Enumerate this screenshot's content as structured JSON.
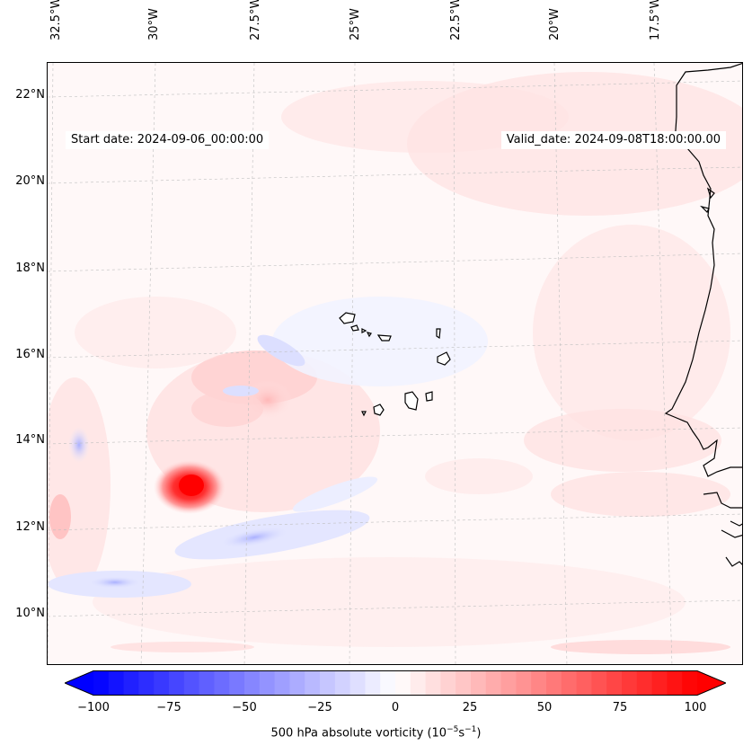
{
  "map": {
    "start_date": "Start date: 2024-09-06_00:00:00",
    "valid_date": "Valid_date: 2024-09-08T18:00:00.00",
    "lon_labels": [
      "32.5°W",
      "30°W",
      "27.5°W",
      "25°W",
      "22.5°W",
      "20°W",
      "17.5°W"
    ],
    "lat_labels": [
      "22°N",
      "20°N",
      "18°N",
      "16°N",
      "14°N",
      "12°N",
      "10°N"
    ],
    "colorbar": {
      "ticks": [
        "−100",
        "−75",
        "−50",
        "−25",
        "0",
        "25",
        "50",
        "75",
        "100"
      ],
      "label": "500 hPa absolute vorticity (10",
      "label_exp1": "−5",
      "label_mid": "s",
      "label_exp2": "−1",
      "label_end": ")",
      "min": -100,
      "max": 100,
      "neg_color": "#0000ff",
      "pos_color": "#ff0000"
    },
    "features": {
      "vorticity_max": {
        "lon": -29.1,
        "lat": 13.0,
        "value": 100
      },
      "coastline": "West Africa",
      "islands": "Cape Verde"
    }
  }
}
